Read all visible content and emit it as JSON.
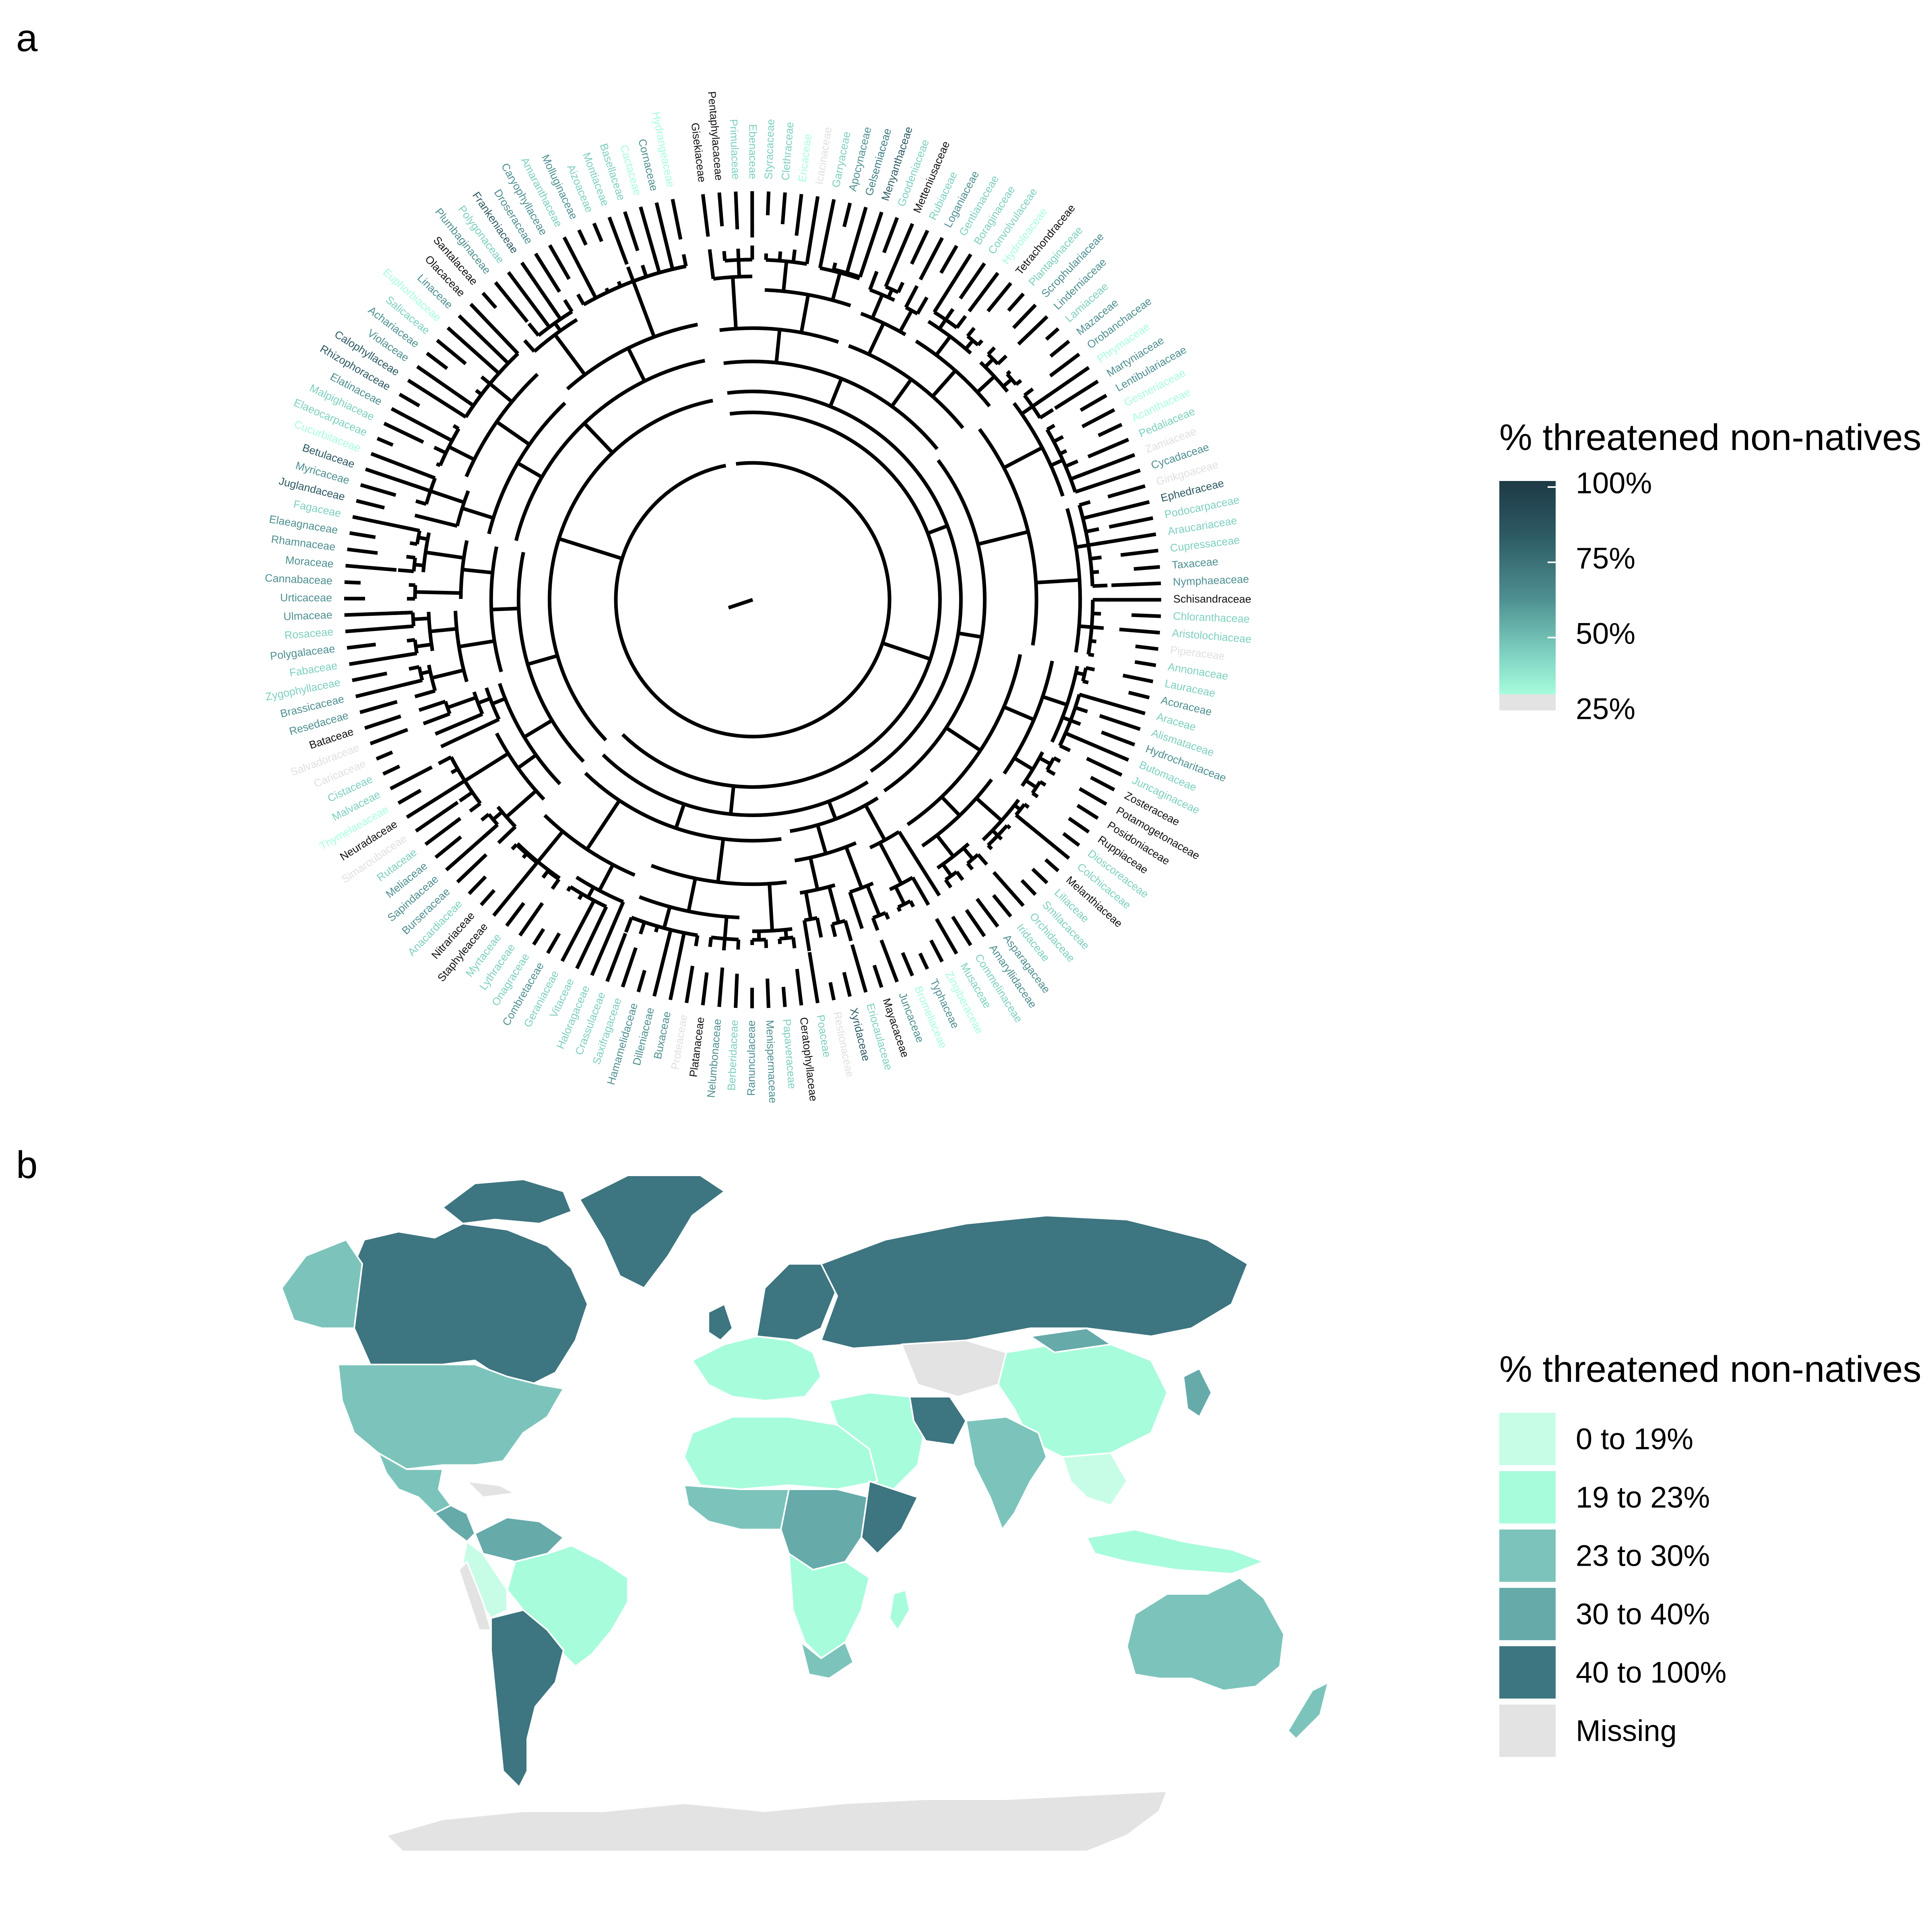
{
  "panel_a": {
    "letter": "a",
    "legend": {
      "title": "% threatened non-natives",
      "ticks": [
        "100%",
        "75%",
        "50%",
        "25%"
      ],
      "tick_values": [
        1.0,
        0.75,
        0.5,
        0.25
      ]
    },
    "tip_labels": [
      {
        "text": "Gisekiaceae",
        "color": "#111111"
      },
      {
        "text": "Pentaphylacaceae",
        "color": "#111111"
      },
      {
        "text": "Primulaceae",
        "color": "#7dcfc0"
      },
      {
        "text": "Ebenaceae",
        "color": "#7dcfc0"
      },
      {
        "text": "Styracaceae",
        "color": "#7dcfc0"
      },
      {
        "text": "Clethraceae",
        "color": "#7dcfc0"
      },
      {
        "text": "Ericaceae",
        "color": "#a7fcdc"
      },
      {
        "text": "Icacinaceae",
        "color": "#e0e0e0"
      },
      {
        "text": "Garryaceae",
        "color": "#7dcfc0"
      },
      {
        "text": "Apocynaceae",
        "color": "#4e8f91"
      },
      {
        "text": "Gelsemiaceae",
        "color": "#3e7d84"
      },
      {
        "text": "Menyanthaceae",
        "color": "#2c5963"
      },
      {
        "text": "Goodeniaceae",
        "color": "#7dcfc0"
      },
      {
        "text": "Metteniusaceae",
        "color": "#111111"
      },
      {
        "text": "Rubiaceae",
        "color": "#7dcfc0"
      },
      {
        "text": "Loganiaceae",
        "color": "#4e8f91"
      },
      {
        "text": "Gentianaceae",
        "color": "#7dcfc0"
      },
      {
        "text": "Boraginaceae",
        "color": "#7dcfc0"
      },
      {
        "text": "Convolvulaceae",
        "color": "#7dcfc0"
      },
      {
        "text": "Hydroleaceae",
        "color": "#a7fcdc"
      },
      {
        "text": "Tetrachondraceae",
        "color": "#111111"
      },
      {
        "text": "Plantaginaceae",
        "color": "#7dcfc0"
      },
      {
        "text": "Scrophulariaceae",
        "color": "#4e8f91"
      },
      {
        "text": "Linderniaceae",
        "color": "#4e8f91"
      },
      {
        "text": "Lamiaceae",
        "color": "#7dcfc0"
      },
      {
        "text": "Mazaceae",
        "color": "#4e8f91"
      },
      {
        "text": "Orobanchaceae",
        "color": "#4e8f91"
      },
      {
        "text": "Phrymaceae",
        "color": "#a7fcdc"
      },
      {
        "text": "Martyniaceae",
        "color": "#4e8f91"
      },
      {
        "text": "Lentibulariaceae",
        "color": "#4e8f91"
      },
      {
        "text": "Gesneriaceae",
        "color": "#a7fcdc"
      },
      {
        "text": "Acanthaceae",
        "color": "#a7fcdc"
      },
      {
        "text": "Pedaliaceae",
        "color": "#7dcfc0"
      },
      {
        "text": "Zamiaceae",
        "color": "#e0e0e0"
      },
      {
        "text": "Cycadaceae",
        "color": "#4e8f91"
      },
      {
        "text": "Ginkgoaceae",
        "color": "#e0e0e0"
      },
      {
        "text": "Ephedraceae",
        "color": "#2c5963"
      },
      {
        "text": "Podocarpaceae",
        "color": "#7dcfc0"
      },
      {
        "text": "Araucariaceae",
        "color": "#7dcfc0"
      },
      {
        "text": "Cupressaceae",
        "color": "#7dcfc0"
      },
      {
        "text": "Taxaceae",
        "color": "#4e8f91"
      },
      {
        "text": "Nymphaeaceae",
        "color": "#4e8f91"
      },
      {
        "text": "Schisandraceae",
        "color": "#111111"
      },
      {
        "text": "Chloranthaceae",
        "color": "#7dcfc0"
      },
      {
        "text": "Aristolochiaceae",
        "color": "#7dcfc0"
      },
      {
        "text": "Piperaceae",
        "color": "#e0e0e0"
      },
      {
        "text": "Annonaceae",
        "color": "#7dcfc0"
      },
      {
        "text": "Lauraceae",
        "color": "#7dcfc0"
      },
      {
        "text": "Acoraceae",
        "color": "#4e8f91"
      },
      {
        "text": "Araceae",
        "color": "#7dcfc0"
      },
      {
        "text": "Alismataceae",
        "color": "#7dcfc0"
      },
      {
        "text": "Hydrocharitaceae",
        "color": "#4e8f91"
      },
      {
        "text": "Butomaceae",
        "color": "#7dcfc0"
      },
      {
        "text": "Juncaginaceae",
        "color": "#7dcfc0"
      },
      {
        "text": "Zosteraceae",
        "color": "#111111"
      },
      {
        "text": "Potamogetonaceae",
        "color": "#111111"
      },
      {
        "text": "Posidoniaceae",
        "color": "#111111"
      },
      {
        "text": "Ruppiaceae",
        "color": "#111111"
      },
      {
        "text": "Dioscoreaceae",
        "color": "#7dcfc0"
      },
      {
        "text": "Colchicaceae",
        "color": "#7dcfc0"
      },
      {
        "text": "Melanthiaceae",
        "color": "#111111"
      },
      {
        "text": "Liliaceae",
        "color": "#7dcfc0"
      },
      {
        "text": "Smilacaceae",
        "color": "#7dcfc0"
      },
      {
        "text": "Orchidaceae",
        "color": "#7dcfc0"
      },
      {
        "text": "Iridaceae",
        "color": "#7dcfc0"
      },
      {
        "text": "Asparagaceae",
        "color": "#4e8f91"
      },
      {
        "text": "Amaryllidaceae",
        "color": "#4e8f91"
      },
      {
        "text": "Commelinaceae",
        "color": "#7dcfc0"
      },
      {
        "text": "Musaceae",
        "color": "#7dcfc0"
      },
      {
        "text": "Zingiberaceae",
        "color": "#a7fcdc"
      },
      {
        "text": "Typhaceae",
        "color": "#4e8f91"
      },
      {
        "text": "Bromeliaceae",
        "color": "#a7fcdc"
      },
      {
        "text": "Juncaceae",
        "color": "#4e8f91"
      },
      {
        "text": "Mayacaceae",
        "color": "#111111"
      },
      {
        "text": "Eriocaulaceae",
        "color": "#7dcfc0"
      },
      {
        "text": "Xyridaceae",
        "color": "#2c5963"
      },
      {
        "text": "Restionaceae",
        "color": "#e0e0e0"
      },
      {
        "text": "Poaceae",
        "color": "#7dcfc0"
      },
      {
        "text": "Ceratophyllaceae",
        "color": "#111111"
      },
      {
        "text": "Papaveraceae",
        "color": "#7dcfc0"
      },
      {
        "text": "Menispermaceae",
        "color": "#4e8f91"
      },
      {
        "text": "Ranunculaceae",
        "color": "#4e8f91"
      },
      {
        "text": "Berberidaceae",
        "color": "#7dcfc0"
      },
      {
        "text": "Nelumbonaceae",
        "color": "#4e8f91"
      },
      {
        "text": "Platanaceae",
        "color": "#111111"
      },
      {
        "text": "Proteaceae",
        "color": "#e0e0e0"
      },
      {
        "text": "Buxaceae",
        "color": "#4e8f91"
      },
      {
        "text": "Dilleniaceae",
        "color": "#4e8f91"
      },
      {
        "text": "Hamamelidaceae",
        "color": "#4e8f91"
      },
      {
        "text": "Saxifragaceae",
        "color": "#7dcfc0"
      },
      {
        "text": "Crassulaceae",
        "color": "#7dcfc0"
      },
      {
        "text": "Haloragaceae",
        "color": "#7dcfc0"
      },
      {
        "text": "Vitaceae",
        "color": "#7dcfc0"
      },
      {
        "text": "Geraniaceae",
        "color": "#7dcfc0"
      },
      {
        "text": "Combretaceae",
        "color": "#4e8f91"
      },
      {
        "text": "Onagraceae",
        "color": "#7dcfc0"
      },
      {
        "text": "Lythraceae",
        "color": "#7dcfc0"
      },
      {
        "text": "Myrtaceae",
        "color": "#7dcfc0"
      },
      {
        "text": "Staphyleaceae",
        "color": "#111111"
      },
      {
        "text": "Nitrariaceae",
        "color": "#111111"
      },
      {
        "text": "Anacardiaceae",
        "color": "#7dcfc0"
      },
      {
        "text": "Burseraceae",
        "color": "#4e8f91"
      },
      {
        "text": "Sapindaceae",
        "color": "#4e8f91"
      },
      {
        "text": "Meliaceae",
        "color": "#4e8f91"
      },
      {
        "text": "Rutaceae",
        "color": "#7dcfc0"
      },
      {
        "text": "Simaroubaceae",
        "color": "#e0e0e0"
      },
      {
        "text": "Neuradaceae",
        "color": "#111111"
      },
      {
        "text": "Thymelaeaceae",
        "color": "#a7fcdc"
      },
      {
        "text": "Malvaceae",
        "color": "#7dcfc0"
      },
      {
        "text": "Cistaceae",
        "color": "#7dcfc0"
      },
      {
        "text": "Caricaceae",
        "color": "#e0e0e0"
      },
      {
        "text": "Salvadoraceae",
        "color": "#e0e0e0"
      },
      {
        "text": "Bataceae",
        "color": "#111111"
      },
      {
        "text": "Resedaceae",
        "color": "#4e8f91"
      },
      {
        "text": "Brassicaceae",
        "color": "#4e8f91"
      },
      {
        "text": "Zygophyllaceae",
        "color": "#7dcfc0"
      },
      {
        "text": "Fabaceae",
        "color": "#7dcfc0"
      },
      {
        "text": "Polygalaceae",
        "color": "#4e8f91"
      },
      {
        "text": "Rosaceae",
        "color": "#7dcfc0"
      },
      {
        "text": "Ulmaceae",
        "color": "#4e8f91"
      },
      {
        "text": "Urticaceae",
        "color": "#4e8f91"
      },
      {
        "text": "Cannabaceae",
        "color": "#4e8f91"
      },
      {
        "text": "Moraceae",
        "color": "#4e8f91"
      },
      {
        "text": "Rhamnaceae",
        "color": "#4e8f91"
      },
      {
        "text": "Elaeagnaceae",
        "color": "#4e8f91"
      },
      {
        "text": "Fagaceae",
        "color": "#7dcfc0"
      },
      {
        "text": "Juglandaceae",
        "color": "#2c5963"
      },
      {
        "text": "Myricaceae",
        "color": "#4e8f91"
      },
      {
        "text": "Betulaceae",
        "color": "#2c5963"
      },
      {
        "text": "Cucurbitaceae",
        "color": "#a7fcdc"
      },
      {
        "text": "Elaeocarpaceae",
        "color": "#7dcfc0"
      },
      {
        "text": "Malpighiaceae",
        "color": "#7dcfc0"
      },
      {
        "text": "Elatinaceae",
        "color": "#4e8f91"
      },
      {
        "text": "Rhizophoraceae",
        "color": "#2c5963"
      },
      {
        "text": "Calophyllaceae",
        "color": "#2c5963"
      },
      {
        "text": "Violaceae",
        "color": "#4e8f91"
      },
      {
        "text": "Achariaceae",
        "color": "#4e8f91"
      },
      {
        "text": "Salicaceae",
        "color": "#7dcfc0"
      },
      {
        "text": "Euphorbiaceae",
        "color": "#a7fcdc"
      },
      {
        "text": "Linaceae",
        "color": "#4e8f91"
      },
      {
        "text": "Olacaceae",
        "color": "#111111"
      },
      {
        "text": "Santalaceae",
        "color": "#111111"
      },
      {
        "text": "Plumbaginaceae",
        "color": "#4e8f91"
      },
      {
        "text": "Polygonaceae",
        "color": "#7dcfc0"
      },
      {
        "text": "Frankeniaceae",
        "color": "#2c5963"
      },
      {
        "text": "Droseraceae",
        "color": "#4e8f91"
      },
      {
        "text": "Caryophyllaceae",
        "color": "#4e8f91"
      },
      {
        "text": "Amaranthaceae",
        "color": "#7dcfc0"
      },
      {
        "text": "Molluginaceae",
        "color": "#4e8f91"
      },
      {
        "text": "Aizoaceae",
        "color": "#7dcfc0"
      },
      {
        "text": "Montiaceae",
        "color": "#7dcfc0"
      },
      {
        "text": "Basellaceae",
        "color": "#7dcfc0"
      },
      {
        "text": "Cactaceae",
        "color": "#a7fcdc"
      },
      {
        "text": "Cornaceae",
        "color": "#4e8f91"
      },
      {
        "text": "Hydrangeaceae",
        "color": "#a7fcdc"
      }
    ]
  },
  "panel_b": {
    "letter": "b",
    "legend": {
      "title": "% threatened non-natives",
      "items": [
        {
          "label": "0 to 19%",
          "color": "#c7fde7"
        },
        {
          "label": "19 to 23%",
          "color": "#a7fcdc"
        },
        {
          "label": "23 to 30%",
          "color": "#7cc4bb"
        },
        {
          "label": "30 to 40%",
          "color": "#66aaaa"
        },
        {
          "label": "40 to 100%",
          "color": "#3d7580"
        },
        {
          "label": "Missing",
          "color": "#e3e3e3"
        }
      ]
    }
  }
}
